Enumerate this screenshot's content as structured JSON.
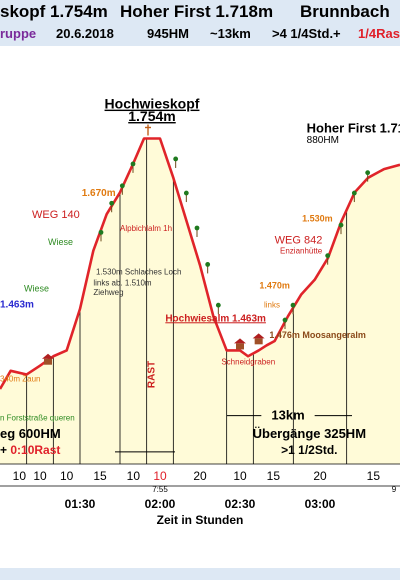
{
  "header": {
    "line1": [
      {
        "text": "skopf 1.754m",
        "color": "#000000"
      },
      {
        "text": "Hoher First 1.718m",
        "color": "#000000"
      },
      {
        "text": "Brunnbach",
        "color": "#000000"
      }
    ],
    "line2": [
      {
        "text": "ruppe",
        "color": "#7a2a9a"
      },
      {
        "text": "20.6.2018",
        "color": "#000000"
      },
      {
        "text": "945HM",
        "color": "#000000"
      },
      {
        "text": "~13km",
        "color": "#000000"
      },
      {
        "text": ">4 1/4Std.+",
        "color": "#000000"
      },
      {
        "text": "1/4Ras",
        "color": "#e0202a"
      }
    ]
  },
  "chart_data": {
    "type": "area",
    "x_unit": "minutes",
    "xlabel": "Zeit in Stunden",
    "x_ticks": [
      {
        "label": "01:30",
        "value": 90
      },
      {
        "label": "02:00",
        "value": 120
      },
      {
        "label": "02:30",
        "value": 150
      },
      {
        "label": "03:00",
        "value": 180
      }
    ],
    "x_small_labels": [
      {
        "label": "7:55",
        "value": 120
      },
      {
        "label": "9",
        "value": 210
      }
    ],
    "xlim": [
      60,
      210
    ],
    "ylim": [
      1340,
      1800
    ],
    "profile": [
      {
        "x": 60,
        "y": 1410
      },
      {
        "x": 64,
        "y": 1435
      },
      {
        "x": 70,
        "y": 1430
      },
      {
        "x": 75,
        "y": 1442
      },
      {
        "x": 80,
        "y": 1455
      },
      {
        "x": 85,
        "y": 1463
      },
      {
        "x": 90,
        "y": 1520
      },
      {
        "x": 95,
        "y": 1600
      },
      {
        "x": 100,
        "y": 1650
      },
      {
        "x": 105,
        "y": 1680
      },
      {
        "x": 110,
        "y": 1720
      },
      {
        "x": 114,
        "y": 1754
      },
      {
        "x": 120,
        "y": 1754
      },
      {
        "x": 125,
        "y": 1700
      },
      {
        "x": 130,
        "y": 1640
      },
      {
        "x": 135,
        "y": 1580
      },
      {
        "x": 140,
        "y": 1510
      },
      {
        "x": 145,
        "y": 1463
      },
      {
        "x": 150,
        "y": 1463
      },
      {
        "x": 153,
        "y": 1455
      },
      {
        "x": 157,
        "y": 1463
      },
      {
        "x": 160,
        "y": 1470
      },
      {
        "x": 163,
        "y": 1476
      },
      {
        "x": 168,
        "y": 1510
      },
      {
        "x": 173,
        "y": 1540
      },
      {
        "x": 178,
        "y": 1560
      },
      {
        "x": 183,
        "y": 1590
      },
      {
        "x": 188,
        "y": 1640
      },
      {
        "x": 193,
        "y": 1680
      },
      {
        "x": 198,
        "y": 1700
      },
      {
        "x": 204,
        "y": 1712
      },
      {
        "x": 210,
        "y": 1718
      }
    ],
    "segments": [
      {
        "x": 60,
        "label": "10"
      },
      {
        "x": 70,
        "label": "10"
      },
      {
        "x": 80,
        "label": "10"
      },
      {
        "x": 90,
        "label": "15"
      },
      {
        "x": 105,
        "label": "10"
      },
      {
        "x": 115,
        "label": "10",
        "color": "#e0202a"
      },
      {
        "x": 125,
        "label": "20"
      },
      {
        "x": 145,
        "label": "10"
      },
      {
        "x": 155,
        "label": "15"
      },
      {
        "x": 170,
        "label": "20"
      },
      {
        "x": 190,
        "label": "15"
      }
    ],
    "vlines": [
      70,
      80,
      90,
      105,
      115,
      125,
      145,
      155,
      170,
      190
    ],
    "annotations": [
      {
        "text": "Hochwieskopf",
        "x": 117,
        "y": 1795,
        "size": 14,
        "bold": true,
        "underline": true,
        "color": "#000000",
        "anchor": "middle"
      },
      {
        "text": "1.754m",
        "x": 117,
        "y": 1778,
        "size": 14,
        "bold": true,
        "underline": true,
        "color": "#000000",
        "anchor": "middle"
      },
      {
        "text": "Hoher First 1.71",
        "x": 175,
        "y": 1762,
        "size": 13,
        "bold": true,
        "color": "#000000",
        "anchor": "start"
      },
      {
        "text": "880HM",
        "x": 175,
        "y": 1748,
        "size": 10,
        "bold": false,
        "color": "#000000",
        "anchor": "start"
      },
      {
        "text": "1.670m",
        "x": 97,
        "y": 1675,
        "size": 10,
        "bold": true,
        "color": "#e07a10",
        "anchor": "middle"
      },
      {
        "text": "WEG 140",
        "x": 72,
        "y": 1645,
        "size": 11,
        "bold": false,
        "color": "#cc1f1f",
        "anchor": "start"
      },
      {
        "text": "Alpbichlalm 1h",
        "x": 105,
        "y": 1627,
        "size": 8,
        "bold": false,
        "color": "#cc1f1f",
        "anchor": "start"
      },
      {
        "text": "Wiese",
        "x": 78,
        "y": 1608,
        "size": 9,
        "bold": false,
        "color": "#2e8b22",
        "anchor": "start"
      },
      {
        "text": "1.530m",
        "x": 179,
        "y": 1640,
        "size": 9,
        "bold": true,
        "color": "#e07a10",
        "anchor": "middle"
      },
      {
        "text": "WEG 842",
        "x": 163,
        "y": 1610,
        "size": 11,
        "bold": false,
        "color": "#cc1f1f",
        "anchor": "start"
      },
      {
        "text": "Enzianhütte",
        "x": 165,
        "y": 1596,
        "size": 8,
        "bold": false,
        "color": "#cc1f1f",
        "anchor": "start"
      },
      {
        "text": "1.530m Schlaches Loch",
        "x": 96,
        "y": 1567,
        "size": 8,
        "bold": false,
        "color": "#333333",
        "anchor": "start"
      },
      {
        "text": "links ab. 1.510m",
        "x": 95,
        "y": 1552,
        "size": 8,
        "bold": false,
        "color": "#333333",
        "anchor": "start"
      },
      {
        "text": "Ziehweg",
        "x": 95,
        "y": 1539,
        "size": 8,
        "bold": false,
        "color": "#333333",
        "anchor": "start"
      },
      {
        "text": "Wiese",
        "x": 69,
        "y": 1544,
        "size": 9,
        "bold": false,
        "color": "#2e8b22",
        "anchor": "start"
      },
      {
        "text": "1.463m",
        "x": 60,
        "y": 1522,
        "size": 10,
        "bold": true,
        "color": "#2a2ad0",
        "anchor": "start"
      },
      {
        "text": "Hochwiesalm 1.463m",
        "x": 122,
        "y": 1503,
        "size": 10,
        "bold": true,
        "color": "#cc1f1f",
        "anchor": "start",
        "underline": true
      },
      {
        "text": "1.470m",
        "x": 163,
        "y": 1548,
        "size": 9,
        "bold": true,
        "color": "#e07a10",
        "anchor": "middle"
      },
      {
        "text": "links",
        "x": 159,
        "y": 1522,
        "size": 8,
        "bold": false,
        "color": "#e07a10",
        "anchor": "start"
      },
      {
        "text": "1.476m Moosangeralm",
        "x": 161,
        "y": 1480,
        "size": 9,
        "bold": true,
        "color": "#8b4a1a",
        "anchor": "start"
      },
      {
        "text": "Schneidgraben",
        "x": 143,
        "y": 1444,
        "size": 8,
        "bold": false,
        "color": "#cc1f1f",
        "anchor": "start"
      },
      {
        "text": "340m Zaun",
        "x": 60,
        "y": 1420,
        "size": 8,
        "bold": false,
        "color": "#e07a10",
        "anchor": "start"
      },
      {
        "text": "n Forststraße queren",
        "x": 60,
        "y": 1367,
        "size": 8,
        "bold": false,
        "color": "#2e8b22",
        "anchor": "start"
      },
      {
        "text": "13km",
        "x": 168,
        "y": 1368,
        "size": 13,
        "bold": true,
        "color": "#000000",
        "anchor": "middle"
      }
    ],
    "rotated_labels": [
      {
        "text": "RAST",
        "x": 118,
        "y": 1430,
        "size": 10,
        "color": "#cc1f1f"
      }
    ],
    "bottom_texts": [
      {
        "text": "eg 600HM",
        "x": 60,
        "y": 1343,
        "size": 13,
        "bold": true,
        "color": "#000000",
        "anchor": "start"
      },
      {
        "text": "Übergänge 325HM",
        "x": 176,
        "y": 1343,
        "size": 13,
        "bold": true,
        "color": "#000000",
        "anchor": "middle"
      },
      {
        "text": ">1 1/2Std.",
        "x": 176,
        "y": 1343,
        "size": 12,
        "bold": true,
        "color": "#000000",
        "anchor": "middle",
        "dy": 16
      }
    ],
    "bottom_texts2": [
      {
        "prefix": "+ ",
        "text": "0:10Rast",
        "color": "#e0202a"
      }
    ],
    "colors": {
      "line": "#e0242a",
      "fill": "#fffbd8",
      "grid": "#000000",
      "tree": "#1f7a1f",
      "hut": "#a05028"
    }
  }
}
